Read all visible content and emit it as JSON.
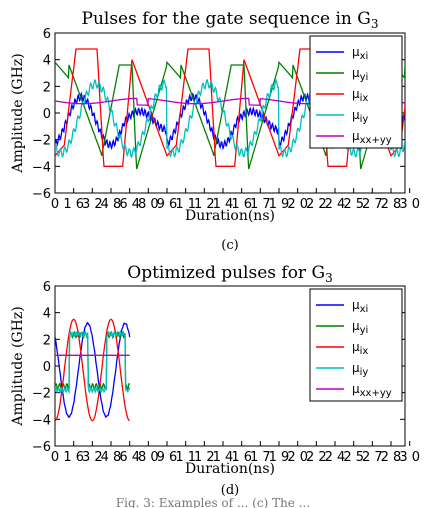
{
  "caption_fragment": "Fig. 3: Examples of ... (c) The ...",
  "chart_data": [
    {
      "type": "line",
      "panel_label": "(c)",
      "title": "Pulses for the gate sequence in G",
      "title_subscript": "3",
      "xlabel": "Duration(ns)",
      "ylabel": "Amplitude (GHz)",
      "ylim": [
        -6,
        6
      ],
      "yticks": [
        "−6",
        "−4",
        "−2",
        "0",
        "2",
        "4",
        "6"
      ],
      "xticks": [
        "0",
        "1 6",
        "3 2",
        "4 8",
        "6 4",
        "8 0",
        "9 6",
        "1 1",
        "1 2",
        "1 4",
        "1 6",
        "1 7",
        "1 9",
        "2 0",
        "2 2",
        "2 4",
        "2 5",
        "2 7",
        "2 8",
        "3 0"
      ],
      "xlim": [
        0,
        300
      ],
      "xtick_step": 16,
      "legend_position": "upper right",
      "series": [
        {
          "name": "μ",
          "sub": "xi",
          "color": "#0000ff",
          "kind": "mu_xi"
        },
        {
          "name": "μ",
          "sub": "yi",
          "color": "#008000",
          "kind": "mu_yi"
        },
        {
          "name": "μ",
          "sub": "ix",
          "color": "#ff0000",
          "kind": "mu_ix"
        },
        {
          "name": "μ",
          "sub": "iy",
          "color": "#00bfbf",
          "kind": "mu_iy"
        },
        {
          "name": "μ",
          "sub": "xx+yy",
          "color": "#bf00bf",
          "kind": "mu_xxyy"
        }
      ]
    },
    {
      "type": "line",
      "panel_label": "(d)",
      "title": "Optimized pulses for G",
      "title_subscript": "3",
      "xlabel": "Duration(ns)",
      "ylabel": "Amplitude (GHz)",
      "ylim": [
        -6,
        6
      ],
      "yticks": [
        "−6",
        "−4",
        "−2",
        "0",
        "2",
        "4",
        "6"
      ],
      "xticks": [
        "0",
        "1 6",
        "3 2",
        "4 8",
        "6 4",
        "8 0",
        "9 6",
        "1 1",
        "1 2",
        "1 4",
        "1 6",
        "1 7",
        "1 9",
        "2 0",
        "2 2",
        "2 4",
        "2 5",
        "2 7",
        "2 8",
        "3 0"
      ],
      "xlim": [
        0,
        300
      ],
      "xtick_step": 16,
      "data_end_ns": 64,
      "legend_position": "upper right",
      "series": [
        {
          "name": "μ",
          "sub": "xi",
          "color": "#0000ff",
          "kind": "opt_xi"
        },
        {
          "name": "μ",
          "sub": "yi",
          "color": "#008000",
          "kind": "opt_yi"
        },
        {
          "name": "μ",
          "sub": "ix",
          "color": "#ff0000",
          "kind": "opt_ix"
        },
        {
          "name": "μ",
          "sub": "iy",
          "color": "#00bfbf",
          "kind": "opt_iy"
        },
        {
          "name": "μ",
          "sub": "xx+yy",
          "color": "#bf00bf",
          "kind": "opt_xxyy"
        }
      ]
    }
  ]
}
